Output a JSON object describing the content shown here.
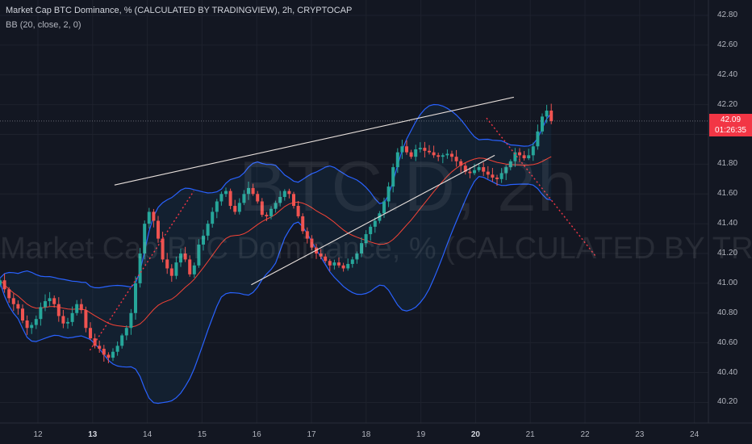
{
  "header": {
    "title": "Market Cap BTC Dominance, % (CALCULATED BY TRADINGVIEW), 2h, CRYPTOCAP",
    "indicator": "BB (20, close, 2, 0)"
  },
  "watermark": {
    "symbol": "BTC.D, 2h",
    "description": "Market Cap BTC Dominance, % (CALCULATED BY TRADINGVIEW)"
  },
  "price_tag": {
    "price": "42.09",
    "countdown": "01:26:35"
  },
  "colors": {
    "background": "#131722",
    "up": "#26a69a",
    "down": "#ef5350",
    "bb_band": "#2962ff",
    "bb_basis": "#f44336",
    "wedge": "#e8e0dc",
    "projection": "#f23645"
  },
  "chart_data": {
    "type": "candlestick",
    "title": "Market Cap BTC Dominance, % (CALCULATED BY TRADINGVIEW), 2h, CRYPTOCAP",
    "indicator": "Bollinger Bands (20, close, 2, 0)",
    "xlabel": "",
    "ylabel": "",
    "x_ticks": [
      {
        "label": "12",
        "day": 12,
        "bold": false
      },
      {
        "label": "13",
        "day": 13,
        "bold": true
      },
      {
        "label": "14",
        "day": 14,
        "bold": false
      },
      {
        "label": "15",
        "day": 15,
        "bold": false
      },
      {
        "label": "16",
        "day": 16,
        "bold": false
      },
      {
        "label": "17",
        "day": 17,
        "bold": false
      },
      {
        "label": "18",
        "day": 18,
        "bold": false
      },
      {
        "label": "19",
        "day": 19,
        "bold": false
      },
      {
        "label": "20",
        "day": 20,
        "bold": true
      },
      {
        "label": "21",
        "day": 21,
        "bold": false
      },
      {
        "label": "22",
        "day": 22,
        "bold": false
      },
      {
        "label": "23",
        "day": 23,
        "bold": false
      },
      {
        "label": "24",
        "day": 24,
        "bold": false
      }
    ],
    "y_ticks": [
      "40.20",
      "40.40",
      "40.60",
      "40.80",
      "41.00",
      "41.20",
      "41.40",
      "41.60",
      "41.80",
      "42.00",
      "42.20",
      "42.40",
      "42.60",
      "42.80"
    ],
    "ylim": [
      40.1,
      42.93
    ],
    "xlim_days": [
      11.35,
      24.5
    ],
    "last_price": 42.09,
    "closes": [
      41.02,
      40.96,
      40.9,
      40.86,
      40.83,
      40.75,
      40.7,
      40.72,
      40.76,
      40.84,
      40.88,
      40.9,
      40.86,
      40.78,
      40.73,
      40.74,
      40.8,
      40.86,
      40.82,
      40.7,
      40.63,
      40.58,
      40.56,
      40.52,
      40.5,
      40.54,
      40.58,
      40.65,
      40.7,
      40.8,
      41.0,
      41.2,
      41.4,
      41.48,
      41.42,
      41.3,
      41.16,
      41.1,
      41.05,
      41.14,
      41.2,
      41.16,
      41.06,
      41.12,
      41.26,
      41.32,
      41.4,
      41.48,
      41.55,
      41.6,
      41.62,
      41.52,
      41.48,
      41.54,
      41.6,
      41.64,
      41.6,
      41.55,
      41.46,
      41.45,
      41.5,
      41.54,
      41.58,
      41.62,
      41.6,
      41.52,
      41.45,
      41.35,
      41.3,
      41.24,
      41.2,
      41.18,
      41.15,
      41.12,
      41.14,
      41.12,
      41.1,
      41.13,
      41.16,
      41.2,
      41.27,
      41.33,
      41.38,
      41.42,
      41.47,
      41.55,
      41.65,
      41.78,
      41.88,
      41.92,
      41.88,
      41.85,
      41.9,
      41.91,
      41.89,
      41.88,
      41.86,
      41.85,
      41.86,
      41.87,
      41.85,
      41.82,
      41.79,
      41.75,
      41.74,
      41.76,
      41.78,
      41.75,
      41.73,
      41.71,
      41.7,
      41.74,
      41.78,
      41.82,
      41.88,
      41.86,
      41.84,
      41.86,
      41.92,
      42.02,
      42.12,
      42.16,
      42.09
    ],
    "projection": [
      {
        "day": 20.2,
        "value": 42.11
      },
      {
        "day": 22.2,
        "value": 41.18
      }
    ],
    "wedge_upper": [
      {
        "day": 13.4,
        "value": 41.66
      },
      {
        "day": 20.7,
        "value": 42.25
      }
    ],
    "wedge_lower": [
      {
        "day": 15.9,
        "value": 40.99
      },
      {
        "day": 20.35,
        "value": 41.86
      }
    ]
  }
}
